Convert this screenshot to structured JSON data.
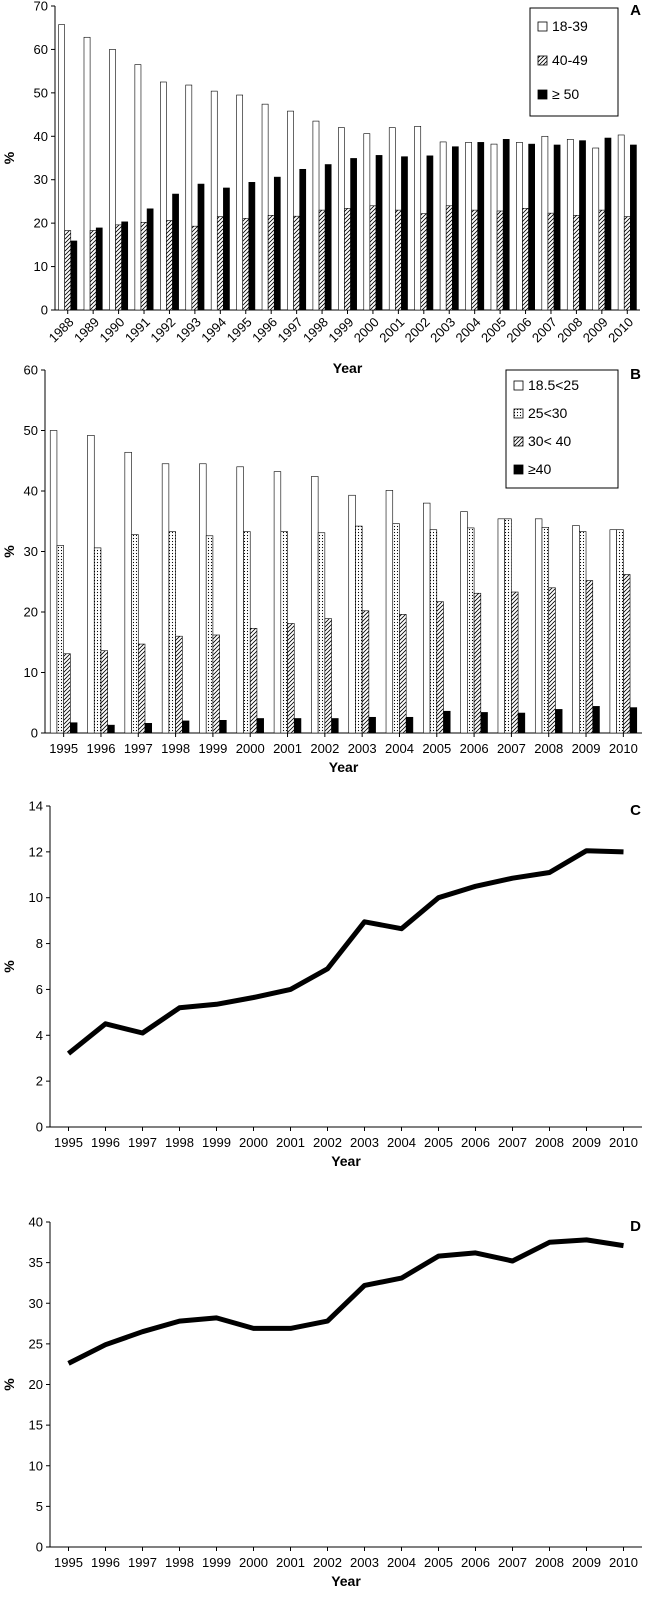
{
  "chart_data": [
    {
      "panel": "A",
      "type": "bar",
      "xlabel": "Year",
      "ylabel": "%",
      "ylim": [
        0,
        70
      ],
      "ytick_step": 10,
      "grid": false,
      "legend_position": "top-right",
      "x_tick_rotation": "diagonal",
      "categories": [
        "1988",
        "1989",
        "1990",
        "1991",
        "1992",
        "1993",
        "1994",
        "1995",
        "1996",
        "1997",
        "1998",
        "1999",
        "2000",
        "2001",
        "2002",
        "2003",
        "2004",
        "2005",
        "2006",
        "2007",
        "2008",
        "2009",
        "2010"
      ],
      "series": [
        {
          "name": "18-39",
          "fill": "white",
          "values": [
            65.7,
            62.8,
            60.0,
            56.5,
            52.5,
            51.8,
            50.4,
            49.5,
            47.4,
            45.8,
            43.5,
            42.0,
            40.6,
            42.0,
            42.3,
            38.7,
            38.6,
            38.2,
            38.6,
            40.0,
            39.3,
            37.3,
            40.3
          ]
        },
        {
          "name": "40-49",
          "fill": "hatch",
          "values": [
            18.3,
            18.3,
            19.6,
            20.2,
            20.6,
            19.3,
            21.5,
            21.1,
            21.8,
            21.6,
            23.0,
            23.4,
            24.0,
            23.0,
            22.2,
            24.0,
            23.0,
            22.8,
            23.4,
            22.3,
            21.8,
            23.0,
            21.5
          ]
        },
        {
          "name": "≥ 50",
          "fill": "black",
          "values": [
            15.9,
            18.9,
            20.3,
            23.3,
            26.7,
            29.0,
            28.1,
            29.4,
            30.6,
            32.4,
            33.5,
            34.9,
            35.6,
            35.3,
            35.5,
            37.6,
            38.6,
            39.3,
            38.2,
            38.0,
            39.0,
            39.6,
            38.0
          ]
        }
      ]
    },
    {
      "panel": "B",
      "type": "bar",
      "xlabel": "Year",
      "ylabel": "%",
      "ylim": [
        0,
        60
      ],
      "ytick_step": 10,
      "grid": false,
      "legend_position": "top-right",
      "categories": [
        "1995",
        "1996",
        "1997",
        "1998",
        "1999",
        "2000",
        "2001",
        "2002",
        "2003",
        "2004",
        "2005",
        "2006",
        "2007",
        "2008",
        "2009",
        "2010"
      ],
      "series": [
        {
          "name": "18.5<25",
          "fill": "white",
          "values": [
            50.0,
            49.2,
            46.4,
            44.5,
            44.5,
            44.0,
            43.2,
            42.4,
            39.3,
            40.1,
            38.0,
            36.6,
            35.4,
            35.4,
            34.3,
            33.6
          ]
        },
        {
          "name": "25<30",
          "fill": "dots",
          "values": [
            31.0,
            30.6,
            32.8,
            33.3,
            32.6,
            33.3,
            33.3,
            33.1,
            34.2,
            34.6,
            33.6,
            33.9,
            35.4,
            34.0,
            33.3,
            33.6
          ]
        },
        {
          "name": "30< 40",
          "fill": "hatch",
          "values": [
            13.1,
            13.6,
            14.7,
            16.0,
            16.2,
            17.3,
            18.1,
            18.9,
            20.2,
            19.6,
            21.7,
            23.1,
            23.3,
            24.0,
            25.2,
            26.2
          ]
        },
        {
          "name": "≥40",
          "fill": "black",
          "values": [
            1.7,
            1.3,
            1.6,
            2.0,
            2.1,
            2.4,
            2.4,
            2.4,
            2.6,
            2.6,
            3.6,
            3.4,
            3.3,
            3.9,
            4.4,
            4.2
          ]
        }
      ]
    },
    {
      "panel": "C",
      "type": "line",
      "xlabel": "Year",
      "ylabel": "%",
      "ylim": [
        0,
        14
      ],
      "ytick_step": 2,
      "grid": false,
      "categories": [
        "1995",
        "1996",
        "1997",
        "1998",
        "1999",
        "2000",
        "2001",
        "2002",
        "2003",
        "2004",
        "2005",
        "2006",
        "2007",
        "2008",
        "2009",
        "2010"
      ],
      "series": [
        {
          "values": [
            3.2,
            4.5,
            4.1,
            5.2,
            5.35,
            5.65,
            6.0,
            6.9,
            8.95,
            8.65,
            10.0,
            10.5,
            10.85,
            11.1,
            12.05,
            12.0
          ]
        }
      ]
    },
    {
      "panel": "D",
      "type": "line",
      "xlabel": "Year",
      "ylabel": "%",
      "ylim": [
        0,
        40
      ],
      "ytick_step": 5,
      "grid": false,
      "categories": [
        "1995",
        "1996",
        "1997",
        "1998",
        "1999",
        "2000",
        "2001",
        "2002",
        "2003",
        "2004",
        "2005",
        "2006",
        "2007",
        "2008",
        "2009",
        "2010"
      ],
      "series": [
        {
          "values": [
            22.6,
            24.9,
            26.5,
            27.8,
            28.2,
            26.9,
            26.9,
            27.8,
            32.2,
            33.1,
            35.8,
            36.2,
            35.2,
            37.5,
            37.8,
            37.1
          ]
        }
      ]
    }
  ]
}
